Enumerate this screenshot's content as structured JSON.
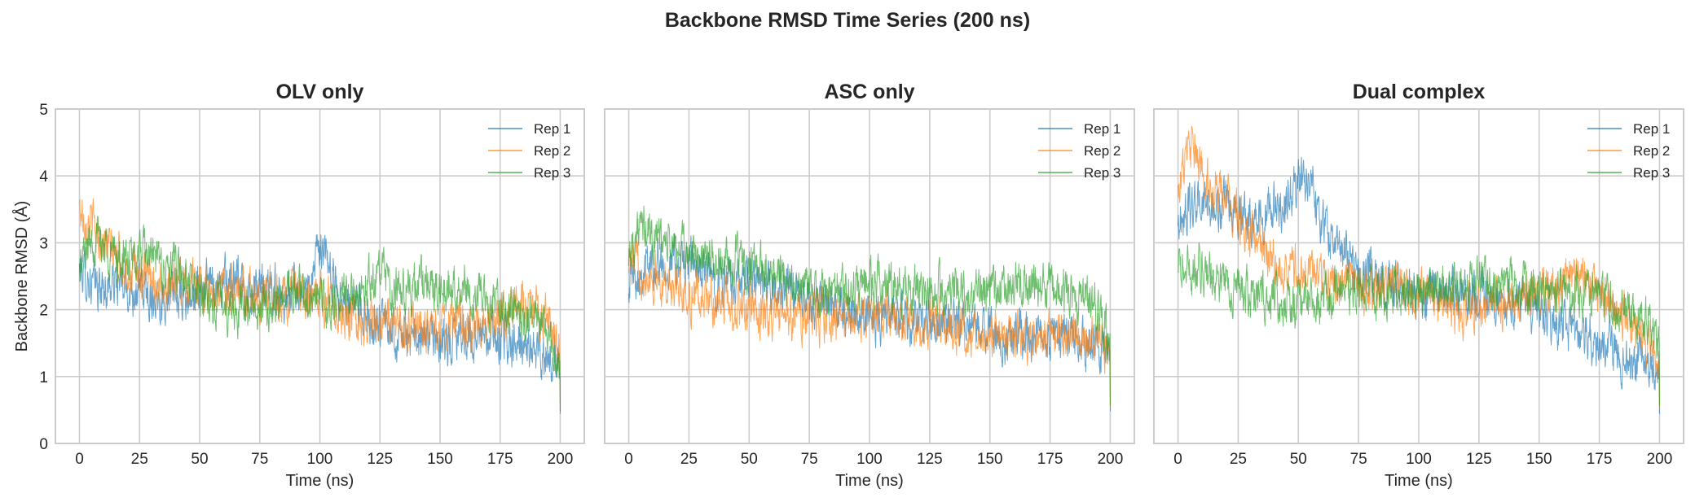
{
  "figure": {
    "title": "Backbone RMSD Time Series (200 ns)"
  },
  "colors": {
    "rep1": "#1f77b4",
    "rep2": "#ff7f0e",
    "rep3": "#2ca02c",
    "grid": "#cccccc",
    "frame": "#cccccc",
    "text": "#262626"
  },
  "chart_data": [
    {
      "type": "line",
      "title": "OLV only",
      "xlabel": "Time (ns)",
      "ylabel": "Backbone RMSD (Å)",
      "xlim": [
        -10,
        210
      ],
      "ylim": [
        0,
        5
      ],
      "xticks": [
        0,
        25,
        50,
        75,
        100,
        125,
        150,
        175,
        200
      ],
      "yticks": [
        0,
        1,
        2,
        3,
        4,
        5
      ],
      "grid": true,
      "legend": "top-right",
      "series": [
        {
          "name": "Rep 1",
          "x": [
            0,
            5,
            10,
            15,
            20,
            25,
            30,
            35,
            40,
            45,
            50,
            55,
            60,
            65,
            70,
            75,
            80,
            85,
            90,
            95,
            100,
            105,
            110,
            115,
            120,
            125,
            130,
            135,
            140,
            145,
            150,
            155,
            160,
            165,
            170,
            175,
            180,
            185,
            190,
            195,
            200
          ],
          "y": [
            2.6,
            2.4,
            2.3,
            2.4,
            2.3,
            2.3,
            2.2,
            2.2,
            2.2,
            2.1,
            2.3,
            2.4,
            2.4,
            2.4,
            2.3,
            2.3,
            2.3,
            2.2,
            2.3,
            2.3,
            2.9,
            2.5,
            2.2,
            2.0,
            1.9,
            1.8,
            1.7,
            1.6,
            1.5,
            1.6,
            1.5,
            1.5,
            1.6,
            1.6,
            1.5,
            1.6,
            1.5,
            1.4,
            1.4,
            1.3,
            1.2
          ]
        },
        {
          "name": "Rep 2",
          "x": [
            0,
            5,
            10,
            15,
            20,
            25,
            30,
            35,
            40,
            45,
            50,
            55,
            60,
            65,
            70,
            75,
            80,
            85,
            90,
            95,
            100,
            105,
            110,
            115,
            120,
            125,
            130,
            135,
            140,
            145,
            150,
            155,
            160,
            165,
            170,
            175,
            180,
            185,
            190,
            195,
            200
          ],
          "y": [
            3.5,
            3.3,
            3.0,
            2.8,
            2.6,
            2.5,
            2.4,
            2.4,
            2.4,
            2.4,
            2.4,
            2.3,
            2.3,
            2.3,
            2.3,
            2.2,
            2.3,
            2.2,
            2.2,
            2.1,
            2.2,
            2.1,
            2.0,
            1.9,
            1.8,
            1.8,
            1.8,
            1.7,
            1.7,
            1.7,
            1.7,
            1.8,
            1.8,
            1.8,
            1.8,
            1.9,
            2.0,
            2.1,
            2.0,
            1.8,
            1.3
          ]
        },
        {
          "name": "Rep 3",
          "x": [
            0,
            5,
            10,
            15,
            20,
            25,
            30,
            35,
            40,
            45,
            50,
            55,
            60,
            65,
            70,
            75,
            80,
            85,
            90,
            95,
            100,
            105,
            110,
            115,
            120,
            125,
            130,
            135,
            140,
            145,
            150,
            155,
            160,
            165,
            170,
            175,
            180,
            185,
            190,
            195,
            200
          ],
          "y": [
            2.6,
            3.1,
            3.0,
            2.8,
            2.7,
            2.8,
            2.8,
            2.6,
            2.6,
            2.4,
            2.2,
            2.1,
            2.1,
            2.0,
            2.1,
            2.0,
            2.1,
            2.2,
            2.3,
            2.2,
            2.1,
            2.0,
            2.2,
            2.3,
            2.4,
            2.5,
            2.4,
            2.3,
            2.4,
            2.4,
            2.3,
            2.3,
            2.4,
            2.2,
            2.1,
            2.0,
            2.0,
            1.9,
            1.9,
            1.7,
            1.1
          ]
        }
      ]
    },
    {
      "type": "line",
      "title": "ASC only",
      "xlabel": "Time (ns)",
      "ylabel": "",
      "xlim": [
        -10,
        210
      ],
      "ylim": [
        0,
        5
      ],
      "xticks": [
        0,
        25,
        50,
        75,
        100,
        125,
        150,
        175,
        200
      ],
      "yticks": [
        0,
        1,
        2,
        3,
        4,
        5
      ],
      "grid": true,
      "legend": "top-right",
      "series": [
        {
          "name": "Rep 1",
          "x": [
            0,
            5,
            10,
            15,
            20,
            25,
            30,
            35,
            40,
            45,
            50,
            55,
            60,
            65,
            70,
            75,
            80,
            85,
            90,
            95,
            100,
            105,
            110,
            115,
            120,
            125,
            130,
            135,
            140,
            145,
            150,
            155,
            160,
            165,
            170,
            175,
            180,
            185,
            190,
            195,
            200
          ],
          "y": [
            2.5,
            2.6,
            2.7,
            2.7,
            2.7,
            2.7,
            2.6,
            2.5,
            2.4,
            2.4,
            2.4,
            2.4,
            2.3,
            2.3,
            2.2,
            2.1,
            2.1,
            2.0,
            2.0,
            2.0,
            1.9,
            1.9,
            1.9,
            1.8,
            1.8,
            1.8,
            1.8,
            1.7,
            1.7,
            1.7,
            1.7,
            1.6,
            1.6,
            1.6,
            1.6,
            1.6,
            1.6,
            1.6,
            1.5,
            1.5,
            1.2
          ]
        },
        {
          "name": "Rep 2",
          "x": [
            0,
            5,
            10,
            15,
            20,
            25,
            30,
            35,
            40,
            45,
            50,
            55,
            60,
            65,
            70,
            75,
            80,
            85,
            90,
            95,
            100,
            105,
            110,
            115,
            120,
            125,
            130,
            135,
            140,
            145,
            150,
            155,
            160,
            165,
            170,
            175,
            180,
            185,
            190,
            195,
            200
          ],
          "y": [
            2.8,
            2.6,
            2.5,
            2.4,
            2.3,
            2.2,
            2.2,
            2.1,
            2.1,
            2.0,
            2.0,
            1.9,
            1.9,
            1.9,
            1.9,
            1.9,
            1.9,
            1.9,
            1.9,
            1.9,
            1.9,
            1.9,
            1.9,
            1.8,
            1.8,
            1.8,
            1.8,
            1.7,
            1.7,
            1.7,
            1.7,
            1.6,
            1.6,
            1.6,
            1.6,
            1.6,
            1.6,
            1.6,
            1.6,
            1.5,
            1.3
          ]
        },
        {
          "name": "Rep 3",
          "x": [
            0,
            5,
            10,
            15,
            20,
            25,
            30,
            35,
            40,
            45,
            50,
            55,
            60,
            65,
            70,
            75,
            80,
            85,
            90,
            95,
            100,
            105,
            110,
            115,
            120,
            125,
            130,
            135,
            140,
            145,
            150,
            155,
            160,
            165,
            170,
            175,
            180,
            185,
            190,
            195,
            200
          ],
          "y": [
            2.9,
            3.2,
            3.1,
            3.0,
            2.9,
            2.8,
            2.8,
            2.7,
            2.7,
            2.7,
            2.6,
            2.6,
            2.6,
            2.5,
            2.4,
            2.3,
            2.2,
            2.2,
            2.3,
            2.3,
            2.4,
            2.5,
            2.4,
            2.3,
            2.3,
            2.3,
            2.3,
            2.3,
            2.2,
            2.3,
            2.3,
            2.3,
            2.4,
            2.4,
            2.3,
            2.3,
            2.3,
            2.2,
            2.1,
            2.0,
            1.4
          ]
        }
      ]
    },
    {
      "type": "line",
      "title": "Dual complex",
      "xlabel": "Time (ns)",
      "ylabel": "",
      "xlim": [
        -10,
        210
      ],
      "ylim": [
        0,
        5
      ],
      "xticks": [
        0,
        25,
        50,
        75,
        100,
        125,
        150,
        175,
        200
      ],
      "yticks": [
        0,
        1,
        2,
        3,
        4,
        5
      ],
      "grid": true,
      "legend": "top-right",
      "series": [
        {
          "name": "Rep 1",
          "x": [
            0,
            5,
            10,
            15,
            20,
            25,
            30,
            35,
            40,
            45,
            50,
            55,
            60,
            65,
            70,
            75,
            80,
            85,
            90,
            95,
            100,
            105,
            110,
            115,
            120,
            125,
            130,
            135,
            140,
            145,
            150,
            155,
            160,
            165,
            170,
            175,
            180,
            185,
            190,
            195,
            200
          ],
          "y": [
            3.3,
            3.5,
            3.6,
            3.5,
            3.5,
            3.5,
            3.4,
            3.4,
            3.5,
            3.6,
            3.9,
            4.0,
            3.3,
            3.0,
            2.8,
            2.6,
            2.5,
            2.5,
            2.4,
            2.3,
            2.2,
            2.2,
            2.3,
            2.3,
            2.2,
            2.2,
            2.2,
            2.1,
            2.1,
            2.0,
            2.0,
            1.9,
            1.8,
            1.7,
            1.6,
            1.5,
            1.4,
            1.3,
            1.3,
            1.2,
            1.1
          ]
        },
        {
          "name": "Rep 2",
          "x": [
            0,
            5,
            10,
            15,
            20,
            25,
            30,
            35,
            40,
            45,
            50,
            55,
            60,
            65,
            70,
            75,
            80,
            85,
            90,
            95,
            100,
            105,
            110,
            115,
            120,
            125,
            130,
            135,
            140,
            145,
            150,
            155,
            160,
            165,
            170,
            175,
            180,
            185,
            190,
            195,
            200
          ],
          "y": [
            3.9,
            4.4,
            4.1,
            3.8,
            3.6,
            3.4,
            3.1,
            2.9,
            2.7,
            2.6,
            2.6,
            2.6,
            2.5,
            2.4,
            2.4,
            2.3,
            2.3,
            2.4,
            2.4,
            2.3,
            2.3,
            2.2,
            2.1,
            2.0,
            2.0,
            2.0,
            2.1,
            2.1,
            2.2,
            2.2,
            2.3,
            2.3,
            2.4,
            2.5,
            2.5,
            2.3,
            2.0,
            1.9,
            1.7,
            1.5,
            1.3
          ]
        },
        {
          "name": "Rep 3",
          "x": [
            0,
            5,
            10,
            15,
            20,
            25,
            30,
            35,
            40,
            45,
            50,
            55,
            60,
            65,
            70,
            75,
            80,
            85,
            90,
            95,
            100,
            105,
            110,
            115,
            120,
            125,
            130,
            135,
            140,
            145,
            150,
            155,
            160,
            165,
            170,
            175,
            180,
            185,
            190,
            195,
            200
          ],
          "y": [
            2.6,
            2.6,
            2.6,
            2.5,
            2.4,
            2.3,
            2.2,
            2.2,
            2.2,
            2.1,
            2.1,
            2.2,
            2.2,
            2.3,
            2.3,
            2.3,
            2.3,
            2.3,
            2.3,
            2.3,
            2.3,
            2.3,
            2.4,
            2.4,
            2.3,
            2.4,
            2.4,
            2.4,
            2.4,
            2.3,
            2.3,
            2.3,
            2.3,
            2.3,
            2.3,
            2.2,
            2.1,
            2.0,
            1.9,
            1.8,
            1.4
          ]
        }
      ]
    }
  ]
}
